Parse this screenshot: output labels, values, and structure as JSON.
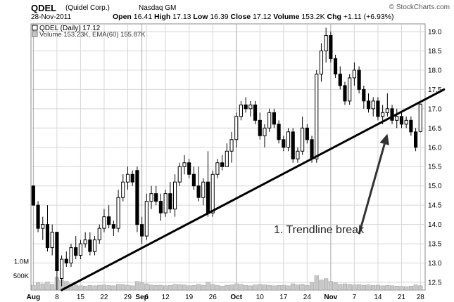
{
  "header": {
    "symbol": "QDEL",
    "company": "(Quidel Corp.)",
    "exchange": "Nasdaq GM",
    "date": "28-Nov-2011",
    "open_label": "Open",
    "open": "16.41",
    "high_label": "High",
    "high": "17.13",
    "low_label": "Low",
    "low": "16.39",
    "close_label": "Close",
    "close": "17.12",
    "volume_label": "Volume",
    "volume": "153.2K",
    "chg_label": "Chg",
    "chg": "+1.11 (+6.93%)",
    "copyright": "© StockCharts.com"
  },
  "legend": {
    "price": "QDEL (Daily) 17.12",
    "volume": "Volume 153.23K, EMA(60) 155.87K"
  },
  "annotation": {
    "text": "1. Trendline break"
  },
  "colors": {
    "up": "#ffffff",
    "down": "#000000",
    "grid": "#d6d6d6",
    "volume": "#c8c8c8"
  },
  "chart_data": {
    "type": "candlestick",
    "title": "QDEL (Daily) 17.12",
    "y_ticks": [
      12.5,
      13.0,
      13.5,
      14.0,
      14.5,
      15.0,
      15.5,
      16.0,
      16.5,
      17.0,
      17.5,
      18.0,
      18.5,
      19.0
    ],
    "ylim": [
      12.3,
      19.2
    ],
    "volume_ticks": [
      "1.0M",
      "500K"
    ],
    "x_labels": [
      {
        "label": "Aug",
        "bar": 0
      },
      {
        "label": "8",
        "bar": 5
      },
      {
        "label": "15",
        "bar": 10
      },
      {
        "label": "22",
        "bar": 15
      },
      {
        "label": "29",
        "bar": 20
      },
      {
        "label": "Sep",
        "bar": 23
      },
      {
        "label": "6",
        "bar": 24
      },
      {
        "label": "12",
        "bar": 28
      },
      {
        "label": "19",
        "bar": 33
      },
      {
        "label": "26",
        "bar": 38
      },
      {
        "label": "Oct",
        "bar": 43
      },
      {
        "label": "10",
        "bar": 48
      },
      {
        "label": "17",
        "bar": 53
      },
      {
        "label": "24",
        "bar": 58
      },
      {
        "label": "Nov",
        "bar": 63
      },
      {
        "label": "7",
        "bar": 68
      },
      {
        "label": "14",
        "bar": 73
      },
      {
        "label": "21",
        "bar": 78
      },
      {
        "label": "28",
        "bar": 82
      }
    ],
    "month_lines": [
      0,
      23,
      43,
      63
    ],
    "trendlines": [
      {
        "from": {
          "bar": 6,
          "price": 12.3
        },
        "to": {
          "bar": 87,
          "price": 17.5
        }
      }
    ],
    "arrow": {
      "from": {
        "bar": 69,
        "price": 13.75
      },
      "to": {
        "bar": 75,
        "price": 16.35
      }
    },
    "candles": [
      {
        "o": 15.0,
        "h": 15.0,
        "l": 14.5,
        "c": 14.5,
        "v": 0.17
      },
      {
        "o": 14.5,
        "h": 14.6,
        "l": 13.8,
        "c": 13.9,
        "v": 0.25
      },
      {
        "o": 13.9,
        "h": 14.2,
        "l": 13.6,
        "c": 14.0,
        "v": 0.22
      },
      {
        "o": 14.0,
        "h": 14.5,
        "l": 13.3,
        "c": 13.4,
        "v": 0.28
      },
      {
        "o": 13.4,
        "h": 14.0,
        "l": 13.2,
        "c": 13.8,
        "v": 0.2
      },
      {
        "o": 13.8,
        "h": 13.8,
        "l": 12.3,
        "c": 12.8,
        "v": 0.45
      },
      {
        "o": 12.6,
        "h": 13.2,
        "l": 12.4,
        "c": 13.1,
        "v": 0.35
      },
      {
        "o": 13.1,
        "h": 13.3,
        "l": 12.9,
        "c": 13.0,
        "v": 0.3
      },
      {
        "o": 13.0,
        "h": 13.5,
        "l": 12.9,
        "c": 13.4,
        "v": 0.22
      },
      {
        "o": 13.4,
        "h": 13.7,
        "l": 13.1,
        "c": 13.2,
        "v": 0.18
      },
      {
        "o": 13.2,
        "h": 13.6,
        "l": 13.1,
        "c": 13.5,
        "v": 0.15
      },
      {
        "o": 13.5,
        "h": 13.8,
        "l": 13.4,
        "c": 13.6,
        "v": 0.14
      },
      {
        "o": 13.6,
        "h": 13.8,
        "l": 13.2,
        "c": 13.3,
        "v": 0.16
      },
      {
        "o": 13.3,
        "h": 13.7,
        "l": 13.2,
        "c": 13.6,
        "v": 0.15
      },
      {
        "o": 13.6,
        "h": 14.0,
        "l": 13.5,
        "c": 13.9,
        "v": 0.17
      },
      {
        "o": 13.9,
        "h": 14.4,
        "l": 13.8,
        "c": 14.2,
        "v": 0.18
      },
      {
        "o": 14.2,
        "h": 14.5,
        "l": 13.9,
        "c": 14.0,
        "v": 0.16
      },
      {
        "o": 14.0,
        "h": 14.1,
        "l": 13.7,
        "c": 13.9,
        "v": 0.15
      },
      {
        "o": 13.9,
        "h": 14.9,
        "l": 13.8,
        "c": 14.7,
        "v": 0.2
      },
      {
        "o": 14.7,
        "h": 15.3,
        "l": 14.6,
        "c": 15.1,
        "v": 0.19
      },
      {
        "o": 15.1,
        "h": 15.5,
        "l": 14.9,
        "c": 15.3,
        "v": 0.17
      },
      {
        "o": 15.3,
        "h": 15.4,
        "l": 15.0,
        "c": 15.1,
        "v": 0.15
      },
      {
        "o": 15.4,
        "h": 15.5,
        "l": 13.8,
        "c": 14.0,
        "v": 0.3
      },
      {
        "o": 14.0,
        "h": 14.2,
        "l": 13.5,
        "c": 13.7,
        "v": 0.25
      },
      {
        "o": 13.7,
        "h": 14.8,
        "l": 13.6,
        "c": 14.6,
        "v": 0.22
      },
      {
        "o": 14.6,
        "h": 15.0,
        "l": 14.4,
        "c": 14.8,
        "v": 0.18
      },
      {
        "o": 14.8,
        "h": 15.0,
        "l": 14.5,
        "c": 14.6,
        "v": 0.16
      },
      {
        "o": 14.6,
        "h": 14.8,
        "l": 14.1,
        "c": 14.3,
        "v": 0.17
      },
      {
        "o": 14.3,
        "h": 14.9,
        "l": 14.2,
        "c": 14.8,
        "v": 0.15
      },
      {
        "o": 14.8,
        "h": 15.1,
        "l": 14.3,
        "c": 14.4,
        "v": 0.16
      },
      {
        "o": 14.4,
        "h": 15.3,
        "l": 14.2,
        "c": 15.1,
        "v": 0.2
      },
      {
        "o": 15.1,
        "h": 15.6,
        "l": 15.0,
        "c": 15.5,
        "v": 0.19
      },
      {
        "o": 15.5,
        "h": 15.8,
        "l": 15.3,
        "c": 15.6,
        "v": 0.18
      },
      {
        "o": 15.6,
        "h": 15.7,
        "l": 15.2,
        "c": 15.3,
        "v": 0.15
      },
      {
        "o": 15.3,
        "h": 15.5,
        "l": 14.9,
        "c": 15.0,
        "v": 0.16
      },
      {
        "o": 15.0,
        "h": 15.5,
        "l": 14.6,
        "c": 14.7,
        "v": 0.2
      },
      {
        "o": 14.7,
        "h": 15.2,
        "l": 14.5,
        "c": 15.1,
        "v": 0.17
      },
      {
        "o": 15.1,
        "h": 15.9,
        "l": 14.2,
        "c": 14.3,
        "v": 0.28
      },
      {
        "o": 14.3,
        "h": 15.4,
        "l": 14.2,
        "c": 15.3,
        "v": 0.2
      },
      {
        "o": 15.3,
        "h": 15.7,
        "l": 15.2,
        "c": 15.6,
        "v": 0.16
      },
      {
        "o": 15.6,
        "h": 15.8,
        "l": 15.4,
        "c": 15.5,
        "v": 0.14
      },
      {
        "o": 15.5,
        "h": 16.1,
        "l": 15.5,
        "c": 15.9,
        "v": 0.17
      },
      {
        "o": 15.9,
        "h": 16.4,
        "l": 15.6,
        "c": 16.2,
        "v": 0.18
      },
      {
        "o": 16.2,
        "h": 16.9,
        "l": 16.0,
        "c": 16.8,
        "v": 0.22
      },
      {
        "o": 16.8,
        "h": 17.2,
        "l": 16.7,
        "c": 17.1,
        "v": 0.2
      },
      {
        "o": 17.1,
        "h": 17.3,
        "l": 16.9,
        "c": 17.0,
        "v": 0.16
      },
      {
        "o": 17.0,
        "h": 17.2,
        "l": 16.8,
        "c": 17.1,
        "v": 0.15
      },
      {
        "o": 17.1,
        "h": 17.2,
        "l": 16.6,
        "c": 16.7,
        "v": 0.18
      },
      {
        "o": 16.7,
        "h": 16.9,
        "l": 16.2,
        "c": 16.3,
        "v": 0.2
      },
      {
        "o": 16.3,
        "h": 16.6,
        "l": 16.0,
        "c": 16.5,
        "v": 0.18
      },
      {
        "o": 16.5,
        "h": 17.0,
        "l": 16.4,
        "c": 16.9,
        "v": 0.17
      },
      {
        "o": 16.9,
        "h": 17.0,
        "l": 16.5,
        "c": 16.6,
        "v": 0.15
      },
      {
        "o": 16.6,
        "h": 16.7,
        "l": 16.1,
        "c": 16.2,
        "v": 0.16
      },
      {
        "o": 16.2,
        "h": 16.3,
        "l": 15.9,
        "c": 16.0,
        "v": 0.17
      },
      {
        "o": 16.0,
        "h": 16.5,
        "l": 15.9,
        "c": 16.4,
        "v": 0.15
      },
      {
        "o": 16.4,
        "h": 16.5,
        "l": 15.6,
        "c": 15.7,
        "v": 0.22
      },
      {
        "o": 15.7,
        "h": 16.0,
        "l": 15.6,
        "c": 15.9,
        "v": 0.18
      },
      {
        "o": 15.9,
        "h": 16.8,
        "l": 15.8,
        "c": 16.5,
        "v": 0.2
      },
      {
        "o": 16.5,
        "h": 16.6,
        "l": 16.1,
        "c": 16.2,
        "v": 0.16
      },
      {
        "o": 16.2,
        "h": 16.3,
        "l": 15.6,
        "c": 15.7,
        "v": 0.25
      },
      {
        "o": 15.7,
        "h": 18.0,
        "l": 15.6,
        "c": 17.9,
        "v": 0.5
      },
      {
        "o": 17.9,
        "h": 18.7,
        "l": 17.7,
        "c": 18.5,
        "v": 0.35
      },
      {
        "o": 18.5,
        "h": 19.1,
        "l": 18.2,
        "c": 18.9,
        "v": 0.4
      },
      {
        "o": 18.9,
        "h": 19.0,
        "l": 18.2,
        "c": 18.3,
        "v": 0.3
      },
      {
        "o": 18.3,
        "h": 18.4,
        "l": 17.8,
        "c": 17.9,
        "v": 0.25
      },
      {
        "o": 17.9,
        "h": 18.1,
        "l": 17.5,
        "c": 17.6,
        "v": 0.2
      },
      {
        "o": 17.6,
        "h": 17.7,
        "l": 17.1,
        "c": 17.2,
        "v": 0.22
      },
      {
        "o": 17.2,
        "h": 17.9,
        "l": 17.1,
        "c": 17.8,
        "v": 0.2
      },
      {
        "o": 17.8,
        "h": 18.2,
        "l": 17.6,
        "c": 18.0,
        "v": 0.18
      },
      {
        "o": 18.0,
        "h": 18.1,
        "l": 17.4,
        "c": 17.5,
        "v": 0.19
      },
      {
        "o": 17.5,
        "h": 17.6,
        "l": 17.0,
        "c": 17.2,
        "v": 0.17
      },
      {
        "o": 17.2,
        "h": 17.4,
        "l": 16.9,
        "c": 17.0,
        "v": 0.18
      },
      {
        "o": 17.0,
        "h": 17.3,
        "l": 16.8,
        "c": 17.2,
        "v": 0.16
      },
      {
        "o": 17.2,
        "h": 17.3,
        "l": 16.7,
        "c": 16.8,
        "v": 0.17
      },
      {
        "o": 16.8,
        "h": 17.1,
        "l": 16.6,
        "c": 16.9,
        "v": 0.15
      },
      {
        "o": 16.9,
        "h": 17.4,
        "l": 16.8,
        "c": 17.0,
        "v": 0.16
      },
      {
        "o": 17.0,
        "h": 17.1,
        "l": 16.6,
        "c": 16.7,
        "v": 0.15
      },
      {
        "o": 16.7,
        "h": 17.0,
        "l": 16.5,
        "c": 16.8,
        "v": 0.14
      },
      {
        "o": 16.8,
        "h": 16.9,
        "l": 16.5,
        "c": 16.6,
        "v": 0.13
      },
      {
        "o": 16.6,
        "h": 16.8,
        "l": 16.5,
        "c": 16.7,
        "v": 0.12
      },
      {
        "o": 16.7,
        "h": 16.8,
        "l": 16.3,
        "c": 16.4,
        "v": 0.14
      },
      {
        "o": 16.4,
        "h": 16.5,
        "l": 15.9,
        "c": 16.0,
        "v": 0.18
      },
      {
        "o": 16.41,
        "h": 17.13,
        "l": 16.39,
        "c": 17.12,
        "v": 0.153
      }
    ]
  }
}
